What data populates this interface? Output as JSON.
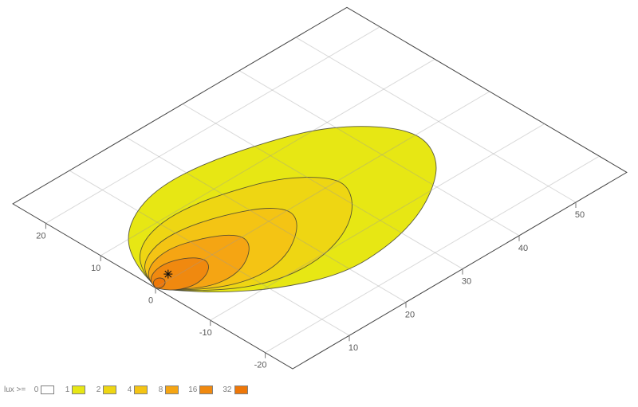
{
  "chart_data": {
    "type": "contour",
    "subtype": "isolux-footprint-oblique-plane",
    "title": "",
    "xlabel": "",
    "ylabel": "",
    "x_axis": {
      "ticks": [
        10,
        20,
        30,
        40,
        50
      ],
      "range": [
        0,
        59
      ]
    },
    "y_axis": {
      "ticks": [
        20,
        10,
        0,
        -10,
        -20
      ],
      "range": [
        -25,
        26
      ]
    },
    "grid": {
      "on": true,
      "x_lines": [
        10,
        20,
        30,
        40,
        50
      ],
      "y_lines": [
        -20,
        -10,
        0,
        10,
        20
      ]
    },
    "legend": {
      "label": "lux >=",
      "position": "bottom-left",
      "entries": [
        {
          "value": "0",
          "color": "#ffffff"
        },
        {
          "value": "1",
          "color": "#e7e714"
        },
        {
          "value": "2",
          "color": "#eed613"
        },
        {
          "value": "4",
          "color": "#f4c414"
        },
        {
          "value": "8",
          "color": "#f5a513"
        },
        {
          "value": "16",
          "color": "#f0890f"
        },
        {
          "value": "32",
          "color": "#ee7708"
        }
      ]
    },
    "marker": {
      "symbol": "asterisk",
      "x": 3.2,
      "y": 1.0
    },
    "levels": [
      {
        "value": 1,
        "color": "#e7e714",
        "outline": [
          [
            0,
            0
          ],
          [
            2,
            6
          ],
          [
            5,
            10.5
          ],
          [
            10,
            13.8
          ],
          [
            16,
            15.3
          ],
          [
            23,
            14.8
          ],
          [
            30,
            13
          ],
          [
            37,
            10.5
          ],
          [
            42,
            7
          ],
          [
            45.5,
            2.5
          ],
          [
            46.2,
            -1.5
          ],
          [
            44,
            -6
          ],
          [
            40,
            -9.5
          ],
          [
            34,
            -12.8
          ],
          [
            27,
            -14.7
          ],
          [
            19,
            -15
          ],
          [
            11,
            -11.5
          ],
          [
            5,
            -6.6
          ],
          [
            1.5,
            -2.4
          ]
        ]
      },
      {
        "value": 2,
        "color": "#eed613",
        "outline": [
          [
            0,
            0
          ],
          [
            1.4,
            3.8
          ],
          [
            3.5,
            6.7
          ],
          [
            7,
            8.8
          ],
          [
            11.5,
            9.7
          ],
          [
            16.5,
            9.3
          ],
          [
            21,
            8.1
          ],
          [
            26,
            6.3
          ],
          [
            29.5,
            4
          ],
          [
            32,
            1
          ],
          [
            32.3,
            -1.5
          ],
          [
            30.5,
            -4.5
          ],
          [
            27.5,
            -7.2
          ],
          [
            23.5,
            -9.3
          ],
          [
            18.5,
            -10.5
          ],
          [
            13,
            -10.2
          ],
          [
            8,
            -8.2
          ],
          [
            3.7,
            -4.7
          ],
          [
            1,
            -1.7
          ]
        ]
      },
      {
        "value": 4,
        "color": "#f4c414",
        "outline": [
          [
            0,
            0
          ],
          [
            1,
            2.7
          ],
          [
            2.5,
            4.7
          ],
          [
            5,
            6.1
          ],
          [
            8,
            6.8
          ],
          [
            11.5,
            6.6
          ],
          [
            15,
            5.7
          ],
          [
            18.5,
            4.3
          ],
          [
            21.5,
            2.6
          ],
          [
            23.2,
            0.6
          ],
          [
            23.3,
            -1.2
          ],
          [
            22,
            -3.2
          ],
          [
            19.5,
            -5.2
          ],
          [
            16.5,
            -6.8
          ],
          [
            13,
            -7.6
          ],
          [
            9.3,
            -7.3
          ],
          [
            5.8,
            -5.8
          ],
          [
            2.7,
            -3.4
          ],
          [
            0.8,
            -1.2
          ]
        ]
      },
      {
        "value": 8,
        "color": "#f5a513",
        "outline": [
          [
            0,
            0
          ],
          [
            0.7,
            1.9
          ],
          [
            1.8,
            3.2
          ],
          [
            3.5,
            4.2
          ],
          [
            5.8,
            4.7
          ],
          [
            8,
            4.6
          ],
          [
            10.3,
            3.9
          ],
          [
            12.5,
            2.9
          ],
          [
            14.3,
            1.7
          ],
          [
            15.3,
            0.3
          ],
          [
            15.2,
            -1.1
          ],
          [
            14.2,
            -2.5
          ],
          [
            12.5,
            -3.8
          ],
          [
            10.5,
            -4.8
          ],
          [
            8.2,
            -5.2
          ],
          [
            5.8,
            -4.9
          ],
          [
            3.6,
            -3.8
          ],
          [
            1.7,
            -2.2
          ],
          [
            0.5,
            -0.8
          ]
        ]
      },
      {
        "value": 16,
        "color": "#f0890f",
        "outline": [
          [
            0,
            0
          ],
          [
            0.4,
            1.2
          ],
          [
            1.1,
            2.0
          ],
          [
            2.2,
            2.6
          ],
          [
            3.6,
            2.9
          ],
          [
            5,
            2.8
          ],
          [
            6.3,
            2.3
          ],
          [
            7.5,
            1.6
          ],
          [
            8.3,
            0.7
          ],
          [
            8.6,
            -0.3
          ],
          [
            8.1,
            -1.4
          ],
          [
            7,
            -2.3
          ],
          [
            5.6,
            -2.9
          ],
          [
            4.1,
            -3.1
          ],
          [
            2.6,
            -2.8
          ],
          [
            1.4,
            -2.1
          ],
          [
            0.5,
            -1.1
          ]
        ]
      },
      {
        "value": 32,
        "color": "#ee7708",
        "outline": [
          [
            0,
            0
          ],
          [
            0.3,
            0.7
          ],
          [
            0.8,
            1.2
          ],
          [
            1.4,
            1.4
          ],
          [
            1.9,
            1.2
          ],
          [
            2.1,
            0.7
          ],
          [
            1.9,
            0.2
          ],
          [
            1.4,
            -0.3
          ],
          [
            0.8,
            -0.5
          ],
          [
            0.3,
            -0.4
          ]
        ]
      }
    ],
    "style": {
      "contour_stroke": "#3f3f35",
      "border_stroke": "#454545",
      "grid_stroke": "#9a9a9a",
      "tick_stroke": "#777777",
      "label_color": "#595959",
      "marker_color": "#111111"
    }
  }
}
